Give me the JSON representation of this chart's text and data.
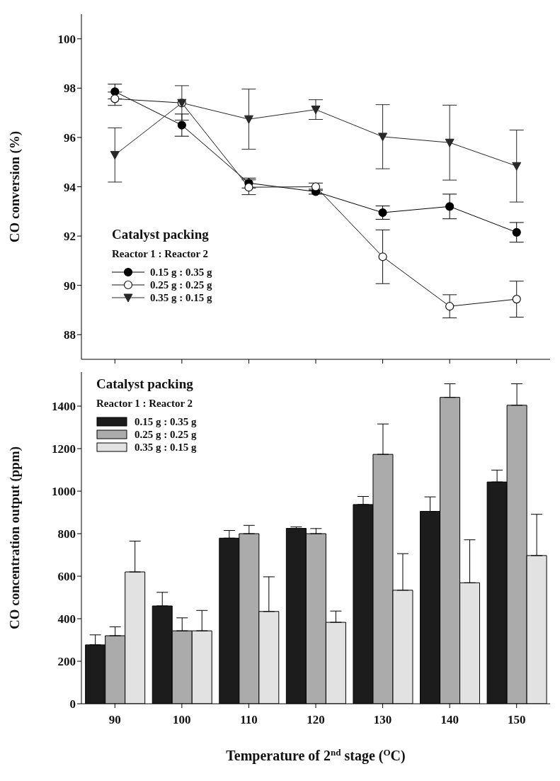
{
  "chart_data": [
    {
      "type": "line",
      "ylabel": "CO conversion (%)",
      "categories": [
        "90",
        "100",
        "110",
        "120",
        "130",
        "140",
        "150"
      ],
      "tick_labels": "y",
      "ylim": [
        87,
        101
      ],
      "yticks": [
        88,
        90,
        92,
        94,
        96,
        98,
        100
      ],
      "grid": false,
      "legend": "bottom left",
      "legend_title": "Catalyst packing",
      "annotations": [
        "Reactor 1 : Reactor 2"
      ],
      "line_style": "solid",
      "series": [
        {
          "name": "0.15 g : 0.35 g",
          "color": "#000000",
          "marker": "circle",
          "values": [
            97.86,
            96.5,
            94.15,
            93.8,
            92.95,
            93.2,
            92.15
          ],
          "errors": [
            0.3,
            0.45,
            0.2,
            0.1,
            0.27,
            0.5,
            0.4
          ]
        },
        {
          "name": "0.25 g : 0.25 g",
          "color": "#141414",
          "colors": [
            "#ffffff",
            "#ffffff",
            "#ffffff",
            "#ffffff",
            "#ffffff",
            "#ffffff",
            "#ffffff"
          ],
          "marker": "circle",
          "values": [
            97.57,
            97.4,
            93.98,
            94.0,
            91.16,
            89.15,
            89.44
          ],
          "errors": [
            0.27,
            null,
            0.3,
            0.15,
            1.09,
            0.47,
            0.73
          ]
        },
        {
          "name": "0.35 g : 0.15 g",
          "color": "#282828",
          "marker": "triangle",
          "values": [
            95.29,
            97.4,
            96.74,
            97.13,
            96.03,
            95.79,
            94.84
          ],
          "errors": [
            1.1,
            0.7,
            1.22,
            0.4,
            1.3,
            1.52,
            1.46
          ]
        }
      ]
    },
    {
      "type": "bar",
      "xlabel": "Temperature of 2$^{nd}$ stage ($^{O}$C)",
      "ylabel": "CO concentration output (ppm)",
      "categories": [
        "90",
        "100",
        "110",
        "120",
        "130",
        "140",
        "150"
      ],
      "ylim": [
        0,
        1560
      ],
      "yticks": [
        0,
        200,
        400,
        600,
        800,
        1000,
        1200,
        1400
      ],
      "grid": false,
      "legend": "top left",
      "legend_title": "Catalyst packing",
      "annotations": [
        "Reactor 1 : Reactor 2"
      ],
      "series": [
        {
          "name": "0.15 g : 0.35 g",
          "color": "#1c1c1c",
          "values": [
            277,
            460,
            779,
            825,
            937,
            905,
            1043
          ],
          "errors": [
            [
              277,
              324
            ],
            [
              460,
              524
            ],
            [
              779,
              815
            ],
            [
              825,
              832
            ],
            [
              937,
              975
            ],
            [
              905,
              973
            ],
            [
              1043,
              1099
            ]
          ]
        },
        {
          "name": "0.25 g : 0.25 g",
          "color": "#ababab",
          "values": [
            320,
            343,
            800,
            800,
            1173,
            1441,
            1404
          ],
          "errors": [
            [
              320,
              362
            ],
            [
              343,
              404
            ],
            [
              800,
              839
            ],
            [
              800,
              824
            ],
            [
              1173,
              1316
            ],
            [
              1441,
              1505
            ],
            [
              1404,
              1505
            ]
          ]
        },
        {
          "name": "0.35 g : 0.15 g",
          "color": "#e2e2e2",
          "values": [
            620,
            343,
            434,
            383,
            534,
            569,
            697
          ],
          "errors": [
            [
              620,
              765
            ],
            [
              343,
              439
            ],
            [
              434,
              597
            ],
            [
              383,
              436
            ],
            [
              534,
              706
            ],
            [
              569,
              771
            ],
            [
              697,
              891
            ]
          ]
        }
      ]
    }
  ]
}
